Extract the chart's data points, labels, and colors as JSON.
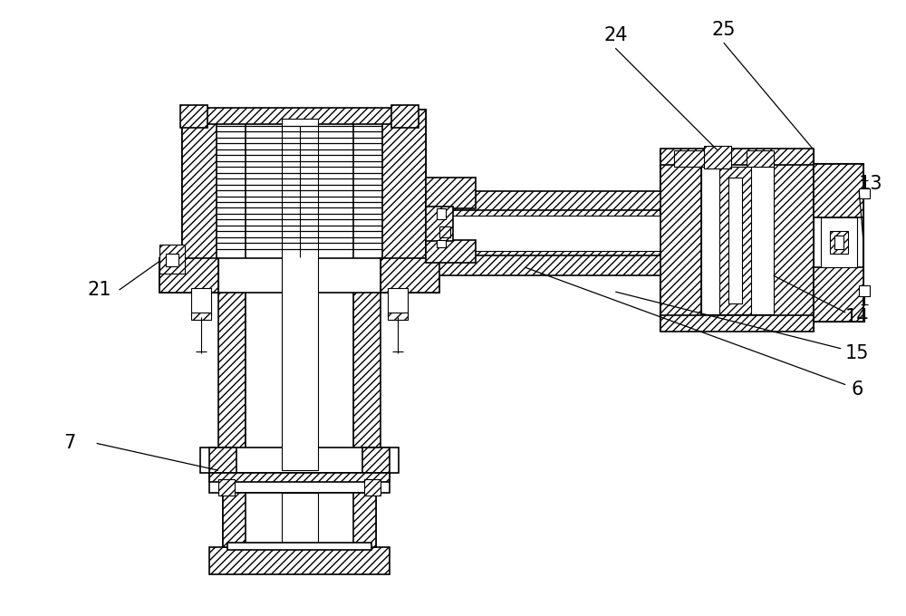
{
  "bg_color": "#ffffff",
  "line_color": "#000000",
  "figsize": [
    10.0,
    6.8
  ],
  "dpi": 100,
  "label_fontsize": 15
}
